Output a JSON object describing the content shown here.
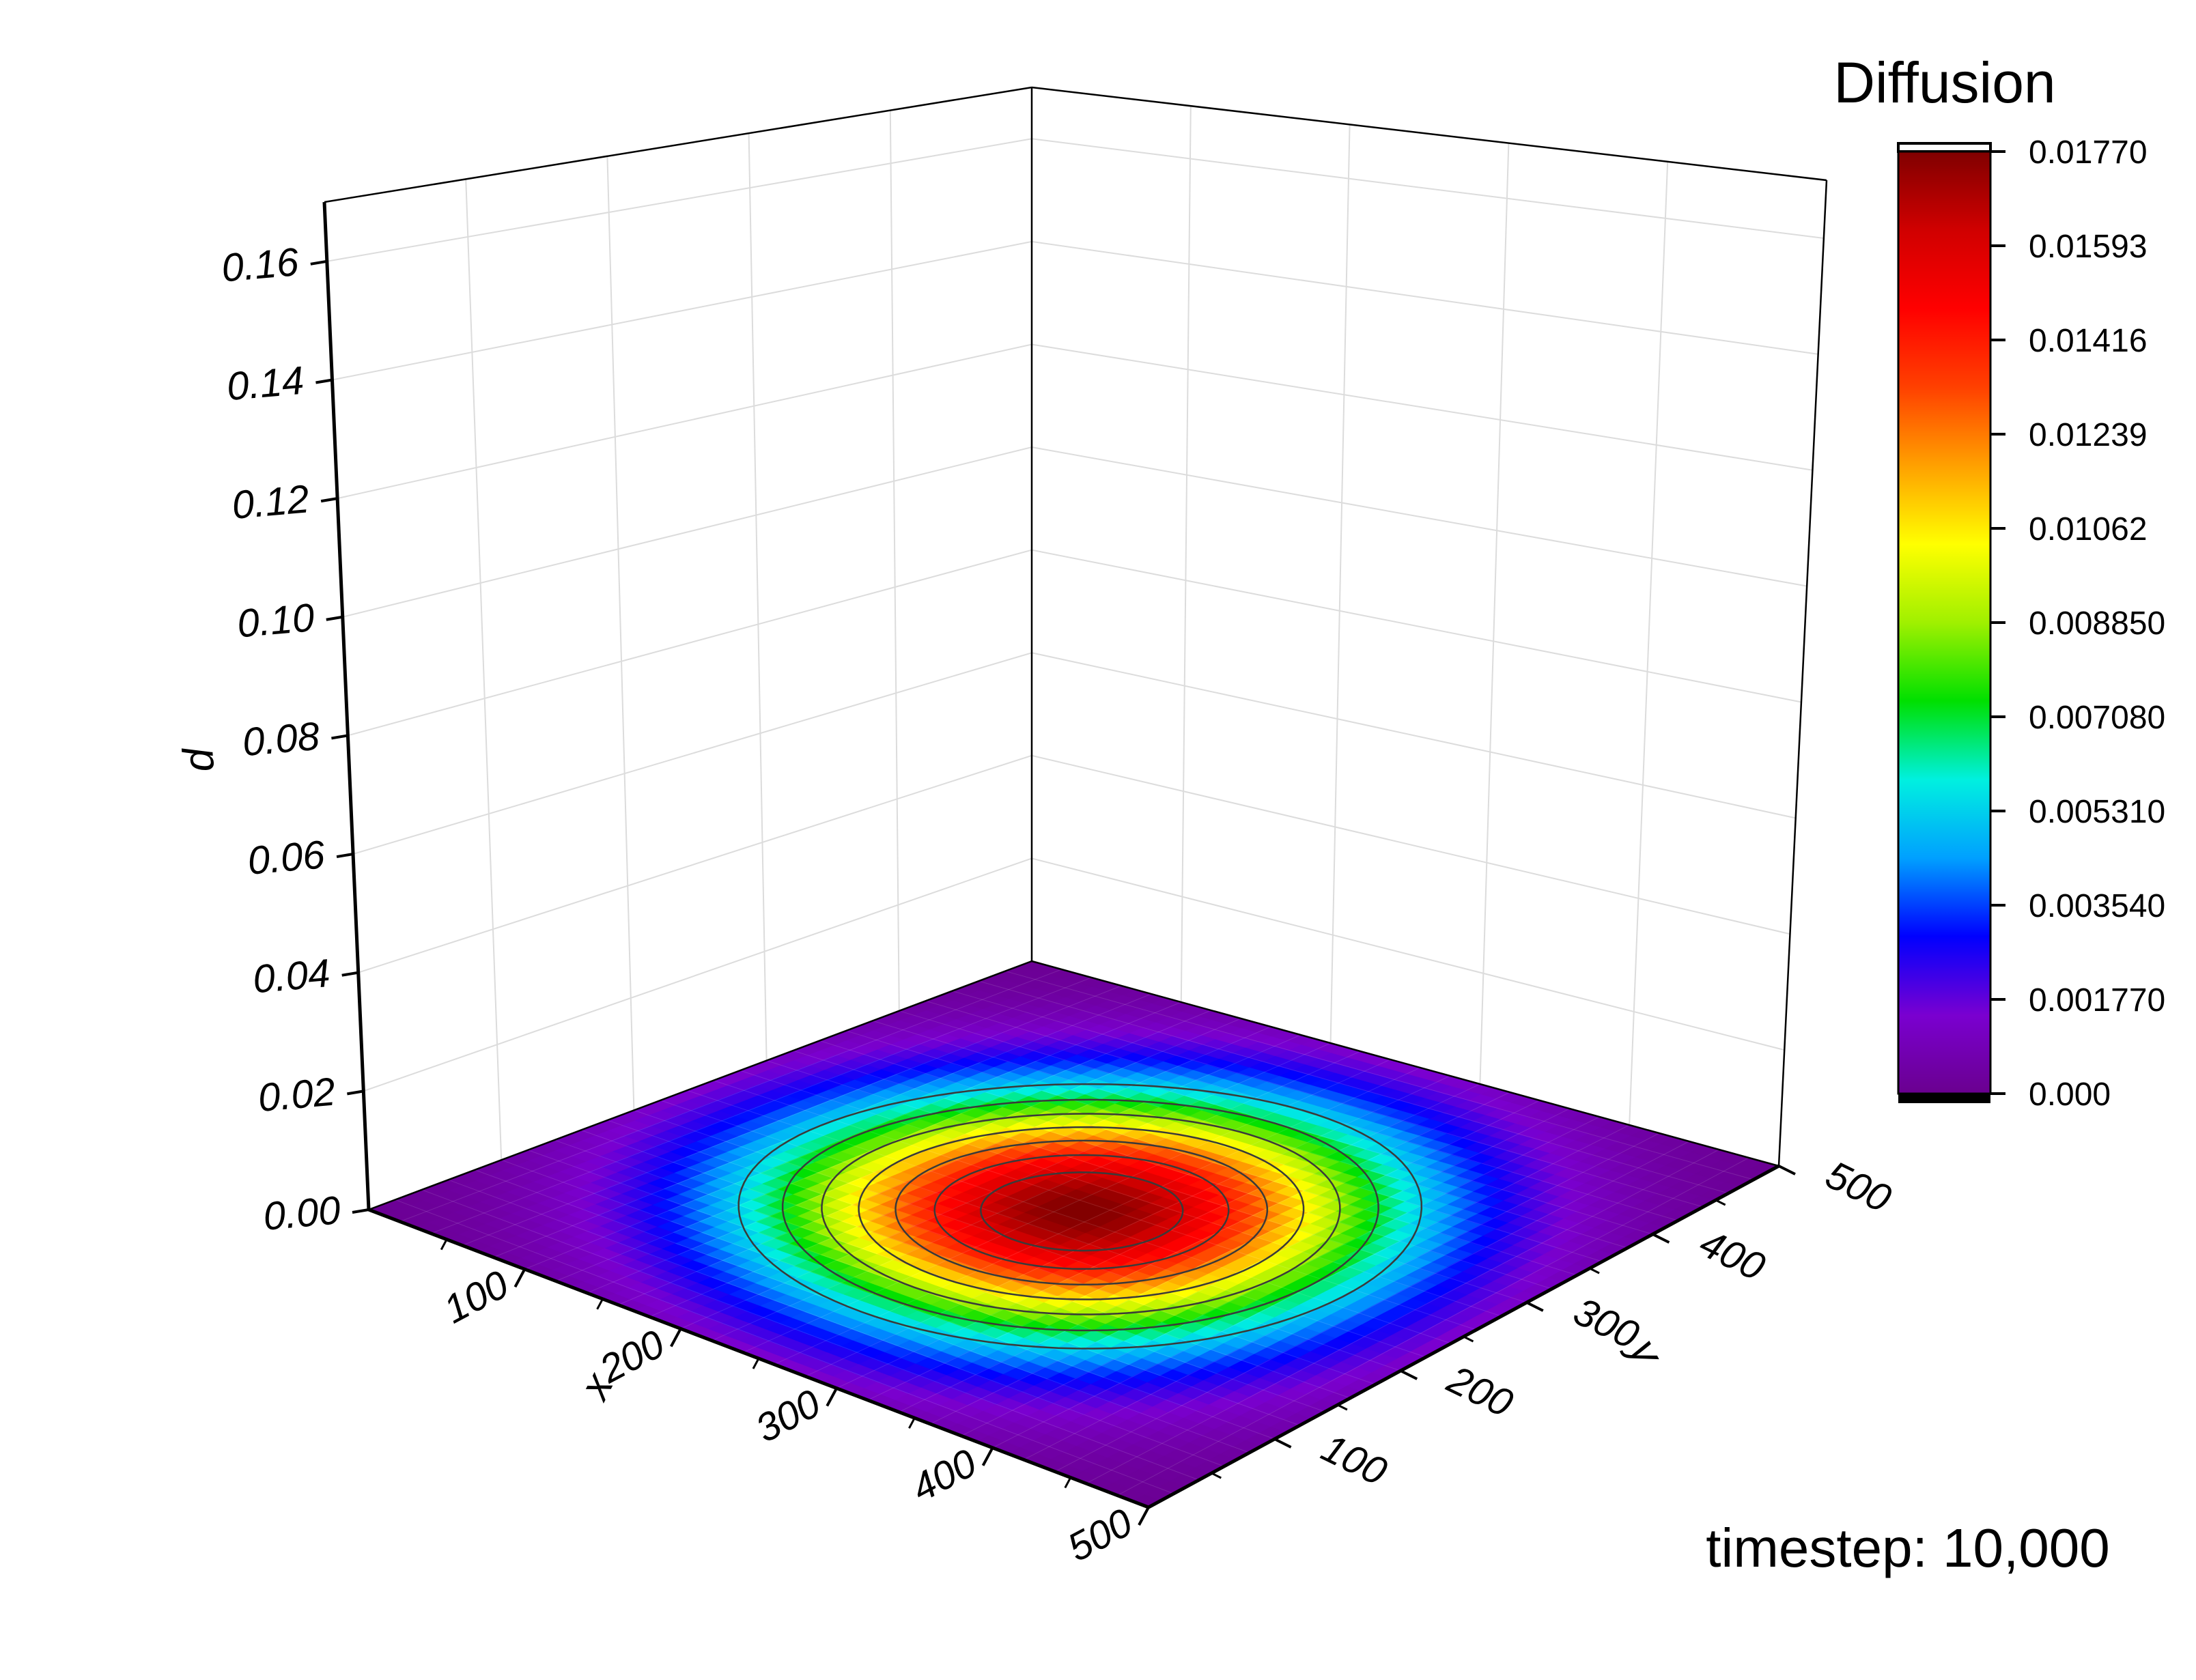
{
  "chart_data": {
    "type": "surface3d",
    "title": "",
    "x": {
      "label": "x",
      "range": [
        0,
        500
      ],
      "ticks": [
        "100",
        "200",
        "300",
        "400",
        "500"
      ]
    },
    "y": {
      "label": "y",
      "range": [
        0,
        500
      ],
      "ticks": [
        "100",
        "200",
        "300",
        "400",
        "500"
      ]
    },
    "z": {
      "label": "d",
      "range": [
        0,
        0.17
      ],
      "ticks": [
        "0.00",
        "0.02",
        "0.04",
        "0.06",
        "0.08",
        "0.10",
        "0.12",
        "0.14",
        "0.16"
      ]
    },
    "surface": {
      "function": "gaussian",
      "center": [
        250,
        250
      ],
      "peak": 0.0177,
      "sigma": 110,
      "contour_levels": [
        0.00531,
        0.00708,
        0.00885,
        0.01062,
        0.01239,
        0.01416,
        0.01593
      ]
    },
    "colorbar": {
      "title": "Diffusion",
      "ticks": [
        "0.000",
        "0.001770",
        "0.003540",
        "0.005310",
        "0.007080",
        "0.008850",
        "0.01062",
        "0.01239",
        "0.01416",
        "0.01593",
        "0.01770"
      ],
      "colors": [
        "#6a008f",
        "#7a00d0",
        "#0000ff",
        "#00a0ff",
        "#00f0e0",
        "#00e000",
        "#a0f000",
        "#ffff00",
        "#ffa000",
        "#ff4000",
        "#ff0000",
        "#d00000",
        "#800000"
      ]
    },
    "grid": true,
    "annotation": "timestep: 10,000"
  }
}
